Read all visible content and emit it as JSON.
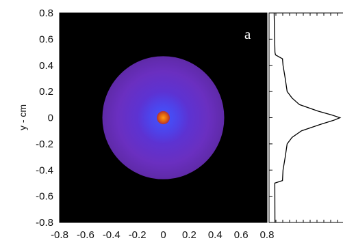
{
  "chart_data": {
    "type": "heatmap",
    "panel_label": "a",
    "xlabel": "",
    "ylabel": "y - cm",
    "xlim": [
      -0.8,
      0.8
    ],
    "ylim": [
      -0.8,
      0.8
    ],
    "x_tick_labels": [
      "-0.8",
      "-0.6",
      "-0.4",
      "-0.2",
      "0",
      "0.2",
      "0.4",
      "0.6",
      "0.8"
    ],
    "y_tick_labels": [
      "0.8",
      "0.6",
      "0.4",
      "0.2",
      "0",
      "-0.2",
      "-0.4",
      "-0.6",
      "-0.8"
    ],
    "background_color": "#000000",
    "image": {
      "disk": {
        "center": [
          0,
          0
        ],
        "radius": 0.47,
        "color": "#6a2fc0"
      },
      "core": {
        "center": [
          0,
          0
        ],
        "radius": 0.05,
        "color": "#e0660f"
      }
    },
    "side_profile": {
      "orientation": "vertical",
      "note": "intensity profile along y",
      "y": [
        -0.8,
        -0.5,
        -0.48,
        -0.4,
        -0.3,
        -0.2,
        -0.15,
        -0.1,
        -0.05,
        -0.02,
        0,
        0.02,
        0.05,
        0.1,
        0.15,
        0.2,
        0.3,
        0.4,
        0.45,
        0.48,
        0.5,
        0.8
      ],
      "value": [
        0.05,
        0.06,
        0.16,
        0.18,
        0.2,
        0.24,
        0.3,
        0.45,
        0.72,
        0.92,
        1.0,
        0.9,
        0.68,
        0.42,
        0.3,
        0.24,
        0.2,
        0.18,
        0.16,
        0.07,
        0.05,
        0.05
      ]
    }
  }
}
